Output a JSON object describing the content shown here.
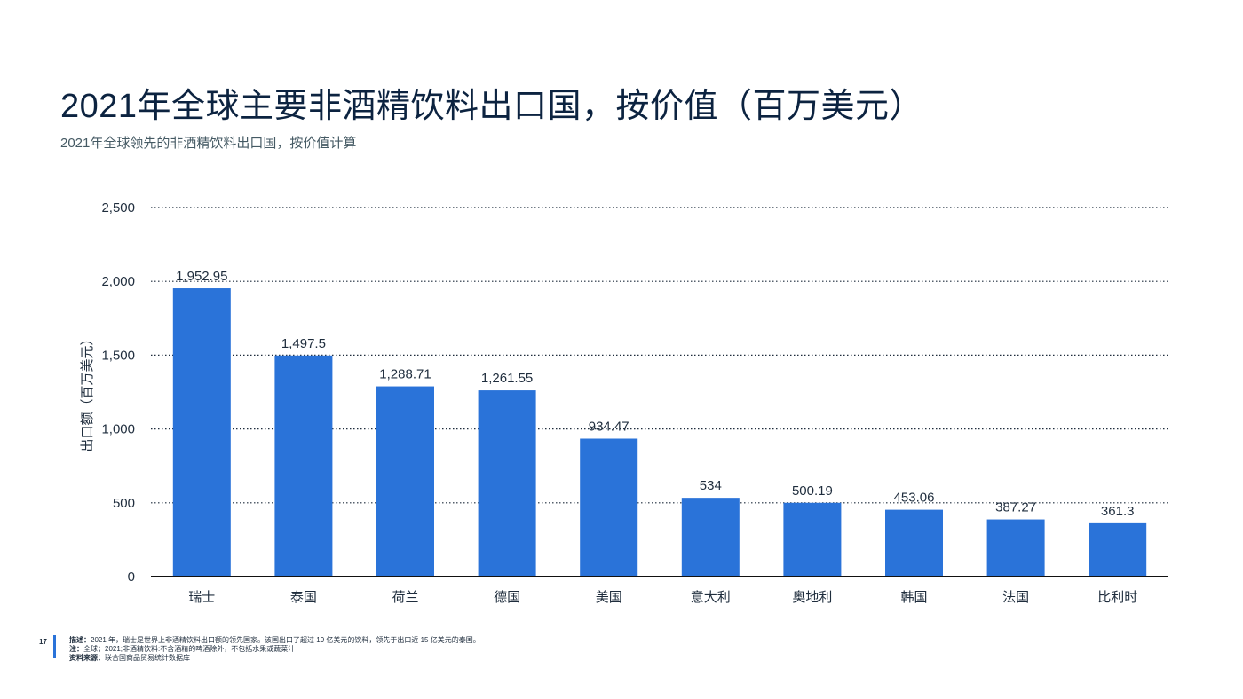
{
  "title": "2021年全球主要非酒精饮料出口国，按价值（百万美元）",
  "subtitle": "2021年全球领先的非酒精饮料出口国，按价值计算",
  "colors": {
    "bar": "#2a73d9",
    "grid": "#1f2d3d",
    "accent": "#2a73d9"
  },
  "chart_data": {
    "type": "bar",
    "categories": [
      "瑞士",
      "泰国",
      "荷兰",
      "德国",
      "美国",
      "意大利",
      "奥地利",
      "韩国",
      "法国",
      "比利时"
    ],
    "values": [
      1952.95,
      1497.5,
      1288.71,
      1261.55,
      934.47,
      534,
      500.19,
      453.06,
      387.27,
      361.3
    ],
    "value_labels": [
      "1,952.95",
      "1,497.5",
      "1,288.71",
      "1,261.55",
      "934.47",
      "534",
      "500.19",
      "453.06",
      "387.27",
      "361.3"
    ],
    "ylabel": "出口额（百万美元）",
    "ylim": [
      0,
      2500
    ],
    "yticks": [
      0,
      500,
      1000,
      1500,
      2000,
      2500
    ],
    "ytick_labels": [
      "0",
      "500",
      "1,000",
      "1,500",
      "2,000",
      "2,500"
    ],
    "grid": true,
    "legend": "none"
  },
  "footer": {
    "page_number": "17",
    "description_label": "描述：",
    "description": "2021 年，瑞士是世界上非酒精饮料出口额的领先国家。该国出口了超过 19 亿美元的饮料，领先于出口近 15 亿美元的泰国。",
    "note_label": "注：",
    "note": "全球；2021;非酒精饮料:不含酒精的啤酒除外，不包括水果或蔬菜汁",
    "source_label": "资料来源：",
    "source": "联合国商品贸易统计数据库"
  }
}
